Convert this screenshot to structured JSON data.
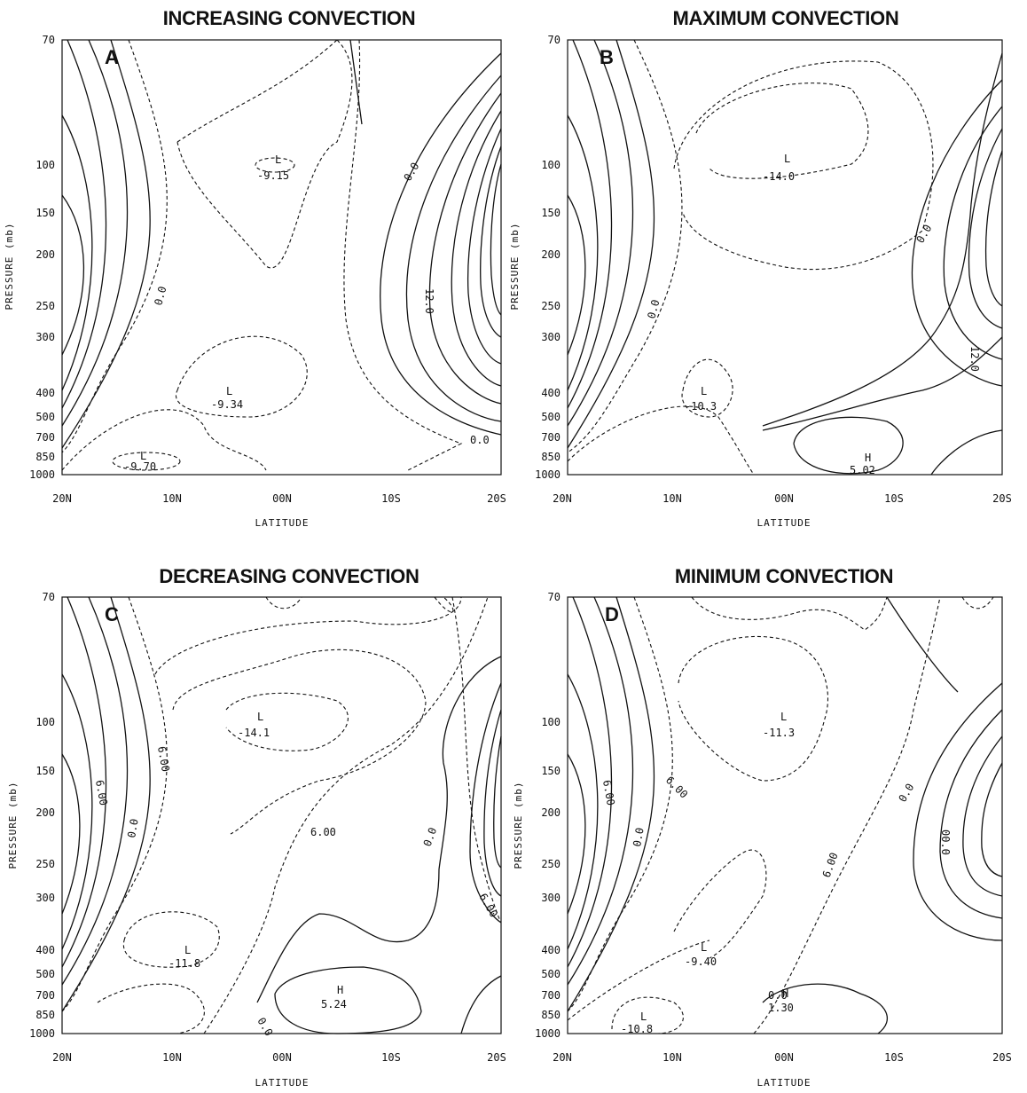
{
  "chart_data": [
    {
      "type": "contour",
      "title": "INCREASING CONVECTION",
      "panel_letter": "A",
      "xlabel": "LATITUDE",
      "ylabel": "PRESSURE (mb)",
      "x_ticks": [
        "20N",
        "10N",
        "00N",
        "10S",
        "20S"
      ],
      "y_ticks": [
        "70",
        "100",
        "150",
        "200",
        "250",
        "300",
        "400",
        "500",
        "700",
        "850",
        "1000"
      ],
      "labels": [
        {
          "text": "L",
          "lat": 4,
          "p": 100
        },
        {
          "text": "-9.15",
          "lat": 4,
          "p": 105
        },
        {
          "text": "L",
          "lat": -2,
          "p": 400
        },
        {
          "text": "-9.34",
          "lat": -2,
          "p": 420
        },
        {
          "text": "L",
          "lat": -12,
          "p": 860
        },
        {
          "text": "-9.70",
          "lat": -12,
          "p": 900
        },
        {
          "text": "0.0",
          "lat": -9,
          "p": 200
        },
        {
          "text": "0.0",
          "lat": 13,
          "p": 105
        },
        {
          "text": "12.0",
          "lat": 16,
          "p": 190
        },
        {
          "text": "0.0",
          "lat": 17,
          "p": 600
        }
      ]
    },
    {
      "type": "contour",
      "title": "MAXIMUM CONVECTION",
      "panel_letter": "B",
      "xlabel": "LATITUDE",
      "ylabel": "PRESSURE (mb)",
      "x_ticks": [
        "20N",
        "10N",
        "00N",
        "10S",
        "20S"
      ],
      "y_ticks": [
        "70",
        "100",
        "150",
        "200",
        "250",
        "300",
        "400",
        "500",
        "700",
        "850",
        "1000"
      ],
      "labels": [
        {
          "text": "L",
          "lat": 1,
          "p": 100
        },
        {
          "text": "-14.0",
          "lat": 1,
          "p": 105
        },
        {
          "text": "L",
          "lat": -7,
          "p": 400
        },
        {
          "text": "-10.3",
          "lat": -7,
          "p": 420
        },
        {
          "text": "H",
          "lat": 8,
          "p": 920
        },
        {
          "text": "5.02",
          "lat": 8,
          "p": 980
        },
        {
          "text": "0.0",
          "lat": -12,
          "p": 220
        },
        {
          "text": "0.0",
          "lat": 14,
          "p": 140
        },
        {
          "text": "12.0",
          "lat": 19,
          "p": 300
        }
      ]
    },
    {
      "type": "contour",
      "title": "DECREASING CONVECTION",
      "panel_letter": "C",
      "xlabel": "LATITUDE",
      "ylabel": "PRESSURE (mb)",
      "x_ticks": [
        "20N",
        "10N",
        "00N",
        "10S",
        "20S"
      ],
      "y_ticks": [
        "70",
        "100",
        "150",
        "200",
        "250",
        "300",
        "400",
        "500",
        "700",
        "850",
        "1000"
      ],
      "labels": [
        {
          "text": "L",
          "lat": 1,
          "p": 100
        },
        {
          "text": "-14.1",
          "lat": 1,
          "p": 105
        },
        {
          "text": "L",
          "lat": -10,
          "p": 400
        },
        {
          "text": "-11.8",
          "lat": -10,
          "p": 420
        },
        {
          "text": "H",
          "lat": 7,
          "p": 720
        },
        {
          "text": "5.24",
          "lat": 7,
          "p": 760
        },
        {
          "text": "6.00",
          "lat": -9,
          "p": 140
        },
        {
          "text": "6.00",
          "lat": 4,
          "p": 190
        },
        {
          "text": "6.00",
          "lat": -16,
          "p": 160
        },
        {
          "text": "0.0",
          "lat": -14,
          "p": 190
        },
        {
          "text": "0.0",
          "lat": 13,
          "p": 190
        },
        {
          "text": "6.00",
          "lat": 18,
          "p": 330
        },
        {
          "text": "0.0",
          "lat": -2,
          "p": 880
        }
      ]
    },
    {
      "type": "contour",
      "title": "MINIMUM CONVECTION",
      "panel_letter": "D",
      "xlabel": "LATITUDE",
      "ylabel": "PRESSURE (mb)",
      "x_ticks": [
        "20N",
        "10N",
        "00N",
        "10S",
        "20S"
      ],
      "y_ticks": [
        "70",
        "100",
        "150",
        "200",
        "250",
        "300",
        "400",
        "500",
        "700",
        "850",
        "1000"
      ],
      "labels": [
        {
          "text": "L",
          "lat": 1,
          "p": 100
        },
        {
          "text": "-11.3",
          "lat": 1,
          "p": 105
        },
        {
          "text": "L",
          "lat": -6,
          "p": 420
        },
        {
          "text": "-9.40",
          "lat": -6,
          "p": 440
        },
        {
          "text": "0.0",
          "lat": 0,
          "p": 690
        },
        {
          "text": "H",
          "lat": 0,
          "p": 690
        },
        {
          "text": "1.30",
          "lat": 0,
          "p": 730
        },
        {
          "text": "L",
          "lat": -12,
          "p": 880
        },
        {
          "text": "-10.8",
          "lat": -12,
          "p": 930
        },
        {
          "text": "6.00",
          "lat": -9,
          "p": 140
        },
        {
          "text": "6.00",
          "lat": -17,
          "p": 160
        },
        {
          "text": "0.0",
          "lat": -15,
          "p": 210
        },
        {
          "text": "0.0",
          "lat": 14,
          "p": 150
        },
        {
          "text": "6.00",
          "lat": 6,
          "p": 210
        },
        {
          "text": "00.0",
          "lat": 17,
          "p": 210
        }
      ]
    }
  ]
}
